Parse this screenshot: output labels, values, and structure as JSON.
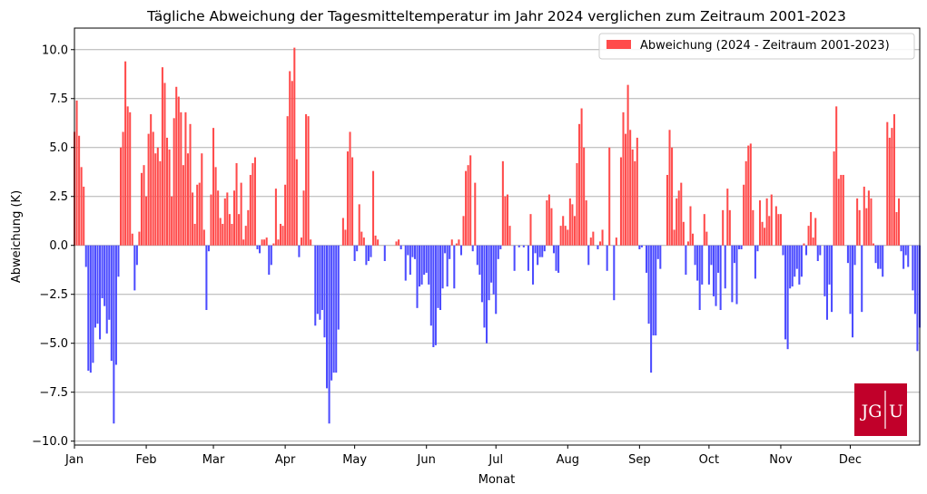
{
  "chart_data": {
    "type": "bar",
    "title": "Tägliche Abweichung der Tagesmitteltemperatur im Jahr 2024 verglichen zum Zeitraum 2001-2023",
    "xlabel": "Monat",
    "ylabel": "Abweichung (K)",
    "ylim": [
      -10.2,
      11.1
    ],
    "xlim": [
      "2024-01-01",
      "2024-12-31"
    ],
    "y_ticks": [
      "−10.0",
      "−7.5",
      "−5.0",
      "−2.5",
      "0.0",
      "2.5",
      "5.0",
      "7.5",
      "10.0"
    ],
    "x_ticks": [
      "Jan",
      "Feb",
      "Mar",
      "Apr",
      "May",
      "Jun",
      "Jul",
      "Aug",
      "Sep",
      "Oct",
      "Nov",
      "Dec"
    ],
    "grid": "horizontal",
    "legend": {
      "position": "top-right",
      "entries": [
        "Abweichung (2024 - Zeitraum 2001-2023)"
      ]
    },
    "colors": {
      "positive": "#ff4b4b",
      "negative": "#4b4bff"
    },
    "series": [
      {
        "name": "Abweichung (2024 - Zeitraum 2001-2023)",
        "start_date": "2024-01-01",
        "values": [
          5.8,
          7.4,
          5.6,
          4.0,
          3.0,
          -1.1,
          -6.4,
          -6.5,
          -6.0,
          -4.2,
          -4.0,
          -4.8,
          -2.7,
          -3.1,
          -4.5,
          -3.8,
          -5.9,
          -9.1,
          -6.1,
          -1.6,
          5.0,
          5.8,
          9.4,
          7.1,
          6.8,
          0.6,
          -2.3,
          -1.0,
          0.7,
          3.7,
          4.1,
          2.5,
          5.7,
          6.7,
          5.8,
          4.7,
          5.0,
          4.3,
          9.1,
          8.3,
          5.5,
          4.9,
          2.5,
          6.5,
          8.1,
          7.6,
          6.8,
          4.1,
          6.8,
          4.7,
          6.2,
          2.7,
          1.1,
          3.1,
          3.2,
          4.7,
          0.8,
          -3.3,
          -0.3,
          2.6,
          6.0,
          4.0,
          2.8,
          1.4,
          1.1,
          2.4,
          2.7,
          1.6,
          1.1,
          2.8,
          4.2,
          1.6,
          3.2,
          0.3,
          1.0,
          1.8,
          3.6,
          4.2,
          4.5,
          -0.2,
          -0.4,
          0.3,
          0.3,
          0.4,
          -1.5,
          -1.0,
          0.1,
          2.9,
          0.3,
          1.1,
          1.0,
          3.1,
          6.6,
          8.9,
          8.4,
          10.1,
          4.4,
          -0.6,
          0.4,
          2.8,
          6.7,
          6.6,
          0.3,
          0.0,
          -4.1,
          -3.5,
          -3.8,
          -3.3,
          -4.7,
          -7.3,
          -9.1,
          -6.9,
          -6.5,
          -6.5,
          -4.3,
          0.0,
          1.4,
          0.8,
          4.8,
          5.8,
          4.5,
          -0.8,
          -0.3,
          2.1,
          0.7,
          0.4,
          -1.0,
          -0.8,
          -0.6,
          3.8,
          0.5,
          0.3,
          0.0,
          0.0,
          -0.8,
          0.0,
          0.0,
          0.0,
          0.0,
          0.2,
          0.3,
          -0.2,
          0.0,
          -1.8,
          -0.5,
          -1.5,
          -0.6,
          -0.7,
          -3.2,
          -2.1,
          -2.0,
          -1.5,
          -1.4,
          -2.0,
          -4.1,
          -5.2,
          -5.1,
          -3.2,
          -3.3,
          -2.2,
          -0.4,
          -2.1,
          -0.7,
          0.3,
          -2.2,
          0.1,
          0.3,
          -0.5,
          1.5,
          3.8,
          4.1,
          4.6,
          -0.3,
          3.2,
          -1.0,
          -1.5,
          -2.9,
          -4.2,
          -5.0,
          -2.8,
          -1.9,
          -2.5,
          -3.5,
          -0.7,
          -0.2,
          4.3,
          2.5,
          2.6,
          1.0,
          0.0,
          -1.3,
          0.0,
          -0.1,
          0.0,
          -0.1,
          0.0,
          -1.3,
          1.6,
          -2.0,
          -0.4,
          -1.0,
          -0.6,
          -0.6,
          -0.3,
          2.3,
          2.6,
          1.9,
          -0.4,
          -1.3,
          -1.4,
          1.0,
          1.5,
          1.0,
          0.8,
          2.4,
          2.1,
          1.5,
          4.2,
          6.2,
          7.0,
          5.0,
          2.3,
          -1.0,
          0.4,
          0.7,
          0.0,
          -0.2,
          0.2,
          0.8,
          0.0,
          -1.3,
          5.0,
          0.0,
          -2.8,
          0.4,
          0.0,
          4.5,
          6.8,
          5.7,
          8.2,
          5.9,
          4.9,
          4.3,
          5.5,
          -0.2,
          -0.1,
          0.0,
          -1.4,
          -4.0,
          -6.5,
          -4.6,
          -4.6,
          -0.7,
          -1.2,
          0.0,
          0.0,
          3.6,
          5.9,
          5.0,
          0.8,
          2.4,
          2.8,
          3.2,
          1.2,
          -1.5,
          0.2,
          2.0,
          0.6,
          -1.0,
          -1.8,
          -3.3,
          -2.0,
          1.6,
          0.7,
          -2.0,
          -1.0,
          -2.6,
          -3.1,
          -1.4,
          -3.3,
          1.8,
          -2.2,
          2.9,
          1.8,
          -2.9,
          -0.9,
          -3.0,
          -0.2,
          -0.2,
          3.1,
          4.3,
          5.1,
          5.2,
          1.8,
          -1.7,
          -0.3,
          2.3,
          1.2,
          0.9,
          2.4,
          1.5,
          2.6,
          0.0,
          2.0,
          1.6,
          1.6,
          -0.5,
          -4.8,
          -5.3,
          -2.2,
          -2.1,
          -1.6,
          -1.2,
          -2.0,
          -1.6,
          0.1,
          -0.5,
          1.0,
          1.7,
          0.4,
          1.4,
          -0.8,
          -0.5,
          0.0,
          -2.6,
          -3.8,
          -2.0,
          -3.4,
          4.8,
          7.1,
          3.4,
          3.6,
          3.6,
          0.0,
          -0.9,
          -3.5,
          -4.7,
          -1.0,
          2.4,
          1.8,
          -3.4,
          3.0,
          1.9,
          2.8,
          2.4,
          0.1,
          -0.9,
          -1.2,
          -1.2,
          -1.6,
          0.0,
          6.3,
          5.5,
          6.0,
          6.7,
          1.7,
          2.4,
          -0.3,
          -1.2,
          -0.5,
          -1.1,
          0.0,
          -2.3,
          -3.5,
          -5.4,
          -4.2
        ]
      }
    ]
  },
  "logo": {
    "text": "JG|U",
    "color": "#c1002a"
  }
}
